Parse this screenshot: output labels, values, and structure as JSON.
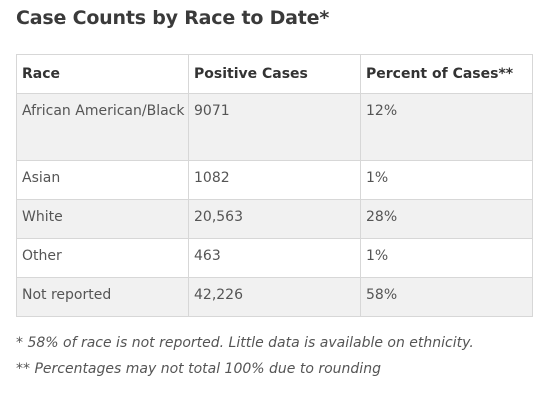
{
  "title": "Case Counts by Race to Date*",
  "table": {
    "headers": [
      "Race",
      "Positive Cases",
      "Percent of Cases**"
    ],
    "rows": [
      {
        "race": "African American/Black",
        "cases": "9071",
        "percent": "12%"
      },
      {
        "race": "Asian",
        "cases": "1082",
        "percent": "1%"
      },
      {
        "race": "White",
        "cases": "20,563",
        "percent": "28%"
      },
      {
        "race": "Other",
        "cases": "463",
        "percent": "1%"
      },
      {
        "race": "Not reported",
        "cases": "42,226",
        "percent": "58%"
      }
    ]
  },
  "footnotes": [
    "* 58% of race is not reported. Little data is available on ethnicity.",
    "** Percentages may not total 100% due to rounding"
  ],
  "colors": {
    "shaded_row": "#f1f1f1",
    "border": "#d7d7d7",
    "title": "#3a3a3a"
  }
}
